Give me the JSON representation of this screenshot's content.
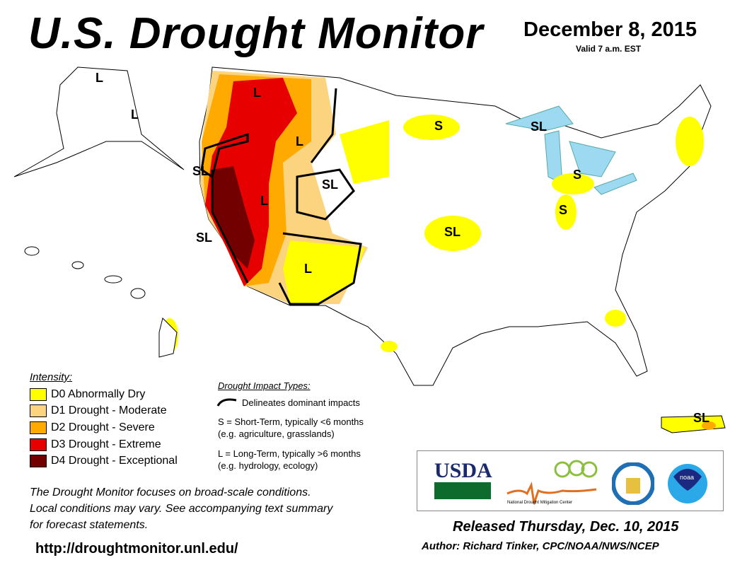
{
  "header": {
    "title": "U.S. Drought Monitor",
    "date": "December 8, 2015",
    "valid": "Valid 7 a.m. EST"
  },
  "legend": {
    "heading": "Intensity:",
    "items": [
      {
        "code": "D0",
        "label": "D0 Abnormally Dry",
        "color": "#FFFF00"
      },
      {
        "code": "D1",
        "label": "D1 Drought - Moderate",
        "color": "#FCD37F"
      },
      {
        "code": "D2",
        "label": "D2 Drought - Severe",
        "color": "#FFAA00"
      },
      {
        "code": "D3",
        "label": "D3 Drought - Extreme",
        "color": "#E60000"
      },
      {
        "code": "D4",
        "label": "D4 Drought - Exceptional",
        "color": "#730000"
      }
    ]
  },
  "impacts": {
    "heading": "Drought Impact Types:",
    "line": "Delineates dominant impacts",
    "short": "S = Short-Term, typically <6 months",
    "short_eg": "(e.g. agriculture, grasslands)",
    "long": "L = Long-Term, typically >6 months",
    "long_eg": "(e.g. hydrology, ecology)"
  },
  "map_labels": [
    "L",
    "L",
    "L",
    "SL",
    "SL",
    "L",
    "SL",
    "L",
    "S",
    "SL",
    "S",
    "S",
    "SL",
    "SL",
    "L"
  ],
  "footer": {
    "note1": "The Drought Monitor focuses on broad-scale conditions.",
    "note2": "Local conditions may vary. See accompanying text summary",
    "note3": "for forecast statements.",
    "url": "http://droughtmonitor.unl.edu/",
    "released": "Released Thursday, Dec. 10, 2015",
    "author": "Author: Richard Tinker, CPC/NOAA/NWS/NCEP"
  },
  "logos": {
    "usda": "USDA",
    "ndmc": "National Drought Mitigation Center",
    "noaa": "noaa"
  }
}
